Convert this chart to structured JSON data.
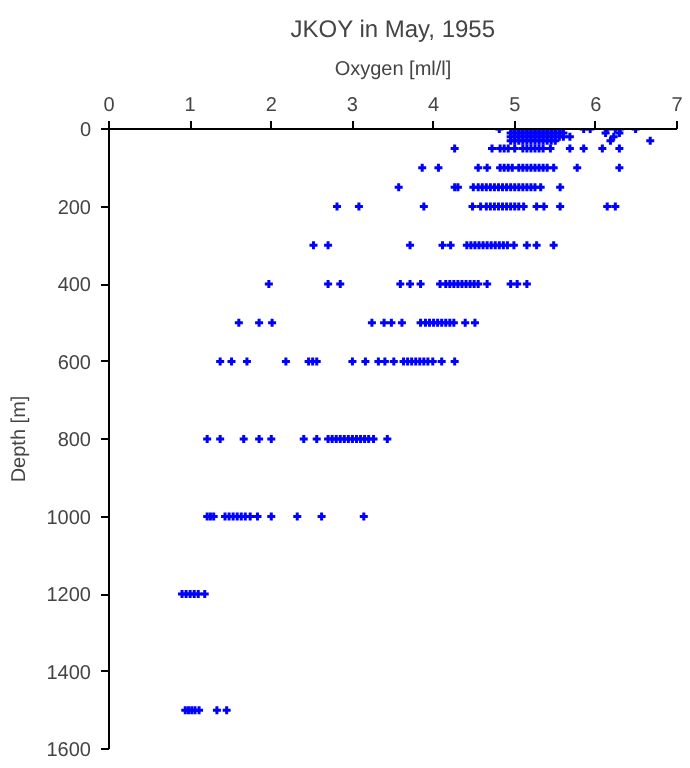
{
  "chart_data": {
    "type": "scatter",
    "title": "JKOY in May, 1955",
    "xlabel": "Oxygen [ml/l]",
    "ylabel": "Depth [m]",
    "marker": "cross",
    "grid": false,
    "xlim": [
      0,
      7
    ],
    "xticks": [
      0,
      1,
      2,
      3,
      4,
      5,
      6,
      7
    ],
    "ylim": [
      1600,
      0
    ],
    "yticks": [
      0,
      200,
      400,
      600,
      800,
      1000,
      1200,
      1400,
      1600
    ],
    "series": [
      {
        "color": "#0000ff",
        "x": [
          4.81,
          4.99,
          5.05,
          5.1,
          5.15,
          5.2,
          5.25,
          5.3,
          5.35,
          5.4,
          5.45,
          5.5,
          5.56,
          5.85,
          5.93,
          6.14,
          6.24,
          6.3,
          6.49,
          4.95,
          5.0,
          5.05,
          5.1,
          5.15,
          5.2,
          5.25,
          5.3,
          5.35,
          5.4,
          5.45,
          5.5,
          5.55,
          5.6,
          6.12,
          6.29,
          4.95,
          5.0,
          5.05,
          5.1,
          5.15,
          5.2,
          5.25,
          5.3,
          5.35,
          5.4,
          5.45,
          5.5,
          5.55,
          5.6,
          5.68,
          6.22,
          4.95,
          5.0,
          5.05,
          5.1,
          5.15,
          5.2,
          5.25,
          5.3,
          5.35,
          5.4,
          5.45,
          5.5,
          6.18,
          6.67,
          4.26,
          4.72,
          4.82,
          4.87,
          4.92,
          5.0,
          5.1,
          5.15,
          5.2,
          5.25,
          5.3,
          5.35,
          5.44,
          5.68,
          5.85,
          6.08,
          6.29,
          3.86,
          4.06,
          4.55,
          4.66,
          4.82,
          4.87,
          4.92,
          4.97,
          5.05,
          5.1,
          5.15,
          5.2,
          5.25,
          5.3,
          5.35,
          5.4,
          5.48,
          5.77,
          6.29,
          3.57,
          4.26,
          4.3,
          4.49,
          4.55,
          4.6,
          4.65,
          4.7,
          4.75,
          4.8,
          4.85,
          4.9,
          4.95,
          5.0,
          5.05,
          5.1,
          5.15,
          5.2,
          5.25,
          5.32,
          5.56,
          2.81,
          3.08,
          3.88,
          4.48,
          4.58,
          4.65,
          4.7,
          4.75,
          4.8,
          4.85,
          4.9,
          4.95,
          5.0,
          5.05,
          5.11,
          5.27,
          5.36,
          5.56,
          6.14,
          6.24,
          2.52,
          2.7,
          3.71,
          4.11,
          4.21,
          4.41,
          4.46,
          4.51,
          4.56,
          4.61,
          4.66,
          4.71,
          4.76,
          4.81,
          4.86,
          4.91,
          4.99,
          5.15,
          5.27,
          5.48,
          1.97,
          2.7,
          2.85,
          3.59,
          3.71,
          3.84,
          4.08,
          4.15,
          4.2,
          4.25,
          4.3,
          4.35,
          4.4,
          4.45,
          4.5,
          4.55,
          4.66,
          4.95,
          5.03,
          5.15,
          1.6,
          1.85,
          2.01,
          3.24,
          3.39,
          3.48,
          3.61,
          3.84,
          3.9,
          3.95,
          4.0,
          4.05,
          4.1,
          4.15,
          4.2,
          4.25,
          4.39,
          4.51,
          1.37,
          1.51,
          1.7,
          2.18,
          2.46,
          2.51,
          2.56,
          3.0,
          3.16,
          3.32,
          3.4,
          3.51,
          3.63,
          3.68,
          3.73,
          3.78,
          3.83,
          3.88,
          3.93,
          3.99,
          4.1,
          4.26,
          1.21,
          1.37,
          1.66,
          1.85,
          2.0,
          2.4,
          2.56,
          2.7,
          2.75,
          2.8,
          2.85,
          2.9,
          2.95,
          3.0,
          3.05,
          3.1,
          3.15,
          3.2,
          3.26,
          3.43,
          1.21,
          1.25,
          1.29,
          1.43,
          1.48,
          1.53,
          1.58,
          1.63,
          1.68,
          1.74,
          1.83,
          2.0,
          2.32,
          2.62,
          3.14,
          0.9,
          0.95,
          1.0,
          1.05,
          1.1,
          1.18,
          0.94,
          0.98,
          1.02,
          1.06,
          1.11,
          1.33,
          1.45
        ],
        "values": [
          0,
          0,
          0,
          0,
          0,
          0,
          0,
          0,
          0,
          0,
          0,
          0,
          0,
          0,
          0,
          0,
          0,
          0,
          0,
          10,
          10,
          10,
          10,
          10,
          10,
          10,
          10,
          10,
          10,
          10,
          10,
          10,
          10,
          10,
          10,
          20,
          20,
          20,
          20,
          20,
          20,
          20,
          20,
          20,
          20,
          20,
          20,
          20,
          20,
          20,
          20,
          30,
          30,
          30,
          30,
          30,
          30,
          30,
          30,
          30,
          30,
          30,
          30,
          30,
          30,
          50,
          50,
          50,
          50,
          50,
          50,
          50,
          50,
          50,
          50,
          50,
          50,
          50,
          50,
          50,
          50,
          50,
          100,
          100,
          100,
          100,
          100,
          100,
          100,
          100,
          100,
          100,
          100,
          100,
          100,
          100,
          100,
          100,
          100,
          100,
          100,
          150,
          150,
          150,
          150,
          150,
          150,
          150,
          150,
          150,
          150,
          150,
          150,
          150,
          150,
          150,
          150,
          150,
          150,
          150,
          150,
          150,
          200,
          200,
          200,
          200,
          200,
          200,
          200,
          200,
          200,
          200,
          200,
          200,
          200,
          200,
          200,
          200,
          200,
          200,
          200,
          200,
          300,
          300,
          300,
          300,
          300,
          300,
          300,
          300,
          300,
          300,
          300,
          300,
          300,
          300,
          300,
          300,
          300,
          300,
          300,
          300,
          400,
          400,
          400,
          400,
          400,
          400,
          400,
          400,
          400,
          400,
          400,
          400,
          400,
          400,
          400,
          400,
          400,
          400,
          400,
          400,
          500,
          500,
          500,
          500,
          500,
          500,
          500,
          500,
          500,
          500,
          500,
          500,
          500,
          500,
          500,
          500,
          500,
          500,
          600,
          600,
          600,
          600,
          600,
          600,
          600,
          600,
          600,
          600,
          600,
          600,
          600,
          600,
          600,
          600,
          600,
          600,
          600,
          600,
          600,
          600,
          800,
          800,
          800,
          800,
          800,
          800,
          800,
          800,
          800,
          800,
          800,
          800,
          800,
          800,
          800,
          800,
          800,
          800,
          800,
          800,
          1000,
          1000,
          1000,
          1000,
          1000,
          1000,
          1000,
          1000,
          1000,
          1000,
          1000,
          1000,
          1000,
          1000,
          1000,
          1200,
          1200,
          1200,
          1200,
          1200,
          1200,
          1500,
          1500,
          1500,
          1500,
          1500,
          1500,
          1500
        ]
      }
    ]
  }
}
